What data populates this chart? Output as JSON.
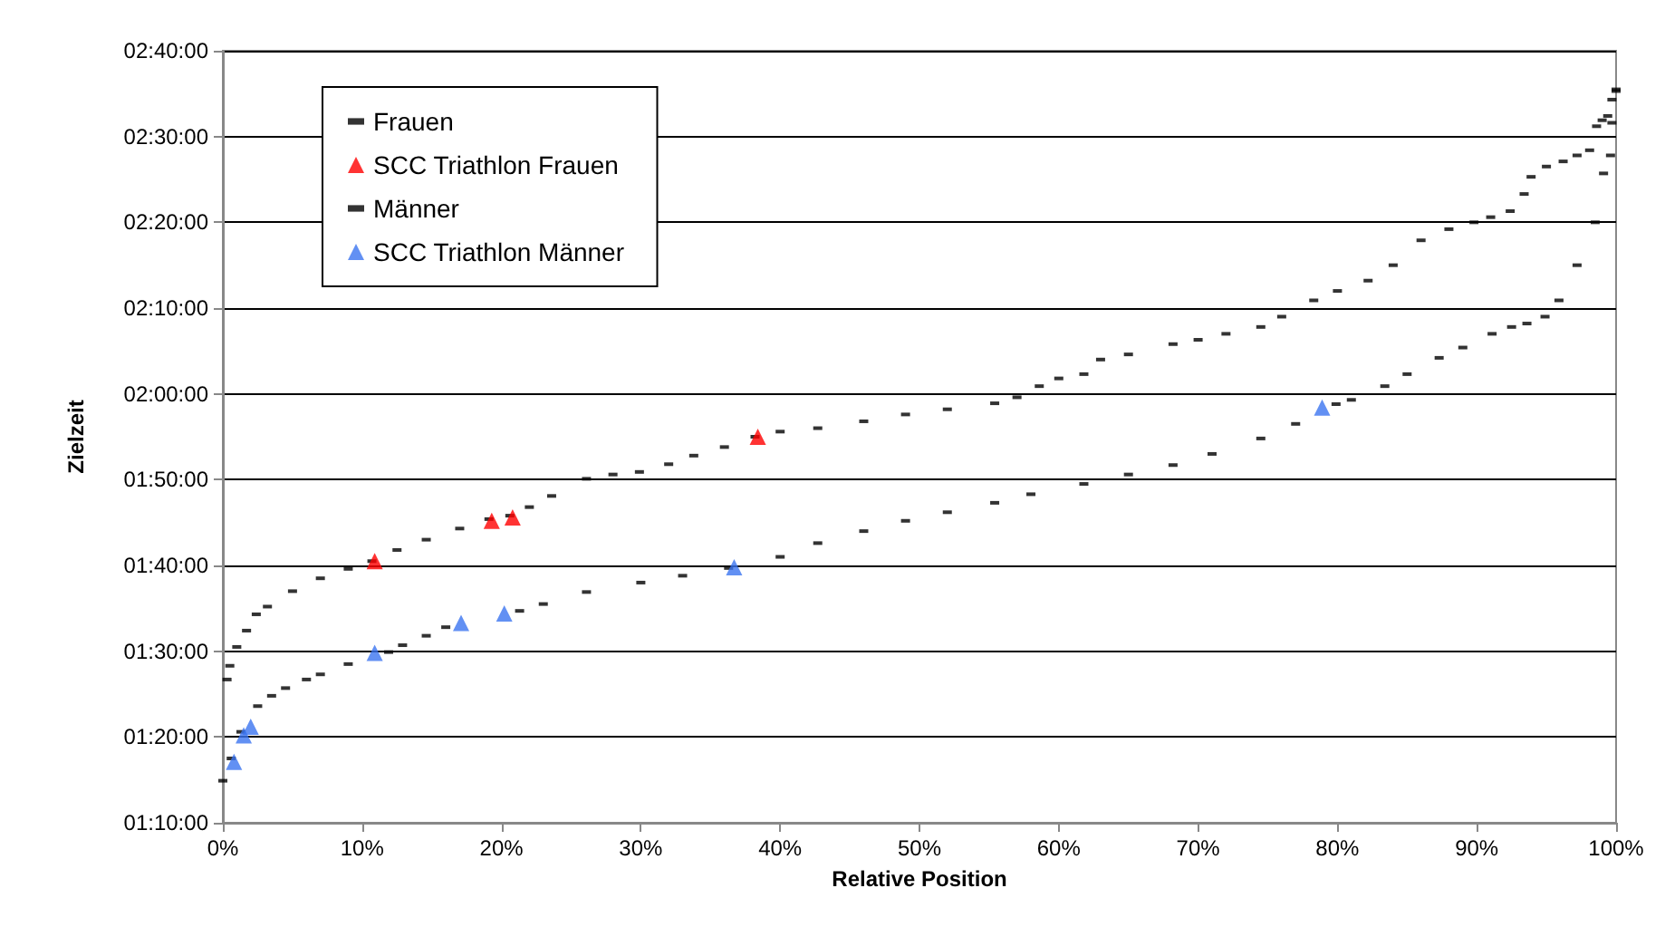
{
  "chart_data": {
    "type": "scatter",
    "xlabel": "Relative Position",
    "ylabel": "Zielzeit",
    "xlim": [
      0,
      100
    ],
    "xticks": [
      {
        "value": 0,
        "label": "0%"
      },
      {
        "value": 10,
        "label": "10%"
      },
      {
        "value": 20,
        "label": "20%"
      },
      {
        "value": 30,
        "label": "30%"
      },
      {
        "value": 40,
        "label": "40%"
      },
      {
        "value": 50,
        "label": "50%"
      },
      {
        "value": 60,
        "label": "60%"
      },
      {
        "value": 70,
        "label": "70%"
      },
      {
        "value": 80,
        "label": "80%"
      },
      {
        "value": 90,
        "label": "90%"
      },
      {
        "value": 100,
        "label": "100%"
      }
    ],
    "ylim": [
      70,
      160
    ],
    "yticks": [
      {
        "value": 70,
        "label": "01:10:00"
      },
      {
        "value": 80,
        "label": "01:20:00"
      },
      {
        "value": 90,
        "label": "01:30:00"
      },
      {
        "value": 100,
        "label": "01:40:00"
      },
      {
        "value": 110,
        "label": "01:50:00"
      },
      {
        "value": 120,
        "label": "02:00:00"
      },
      {
        "value": 130,
        "label": "02:10:00"
      },
      {
        "value": 140,
        "label": "02:20:00"
      },
      {
        "value": 150,
        "label": "02:30:00"
      },
      {
        "value": 160,
        "label": "02:40:00"
      }
    ],
    "grid": "y",
    "legend": "top left",
    "series": [
      {
        "name": "Frauen",
        "color": "#000000",
        "marker": "square",
        "x": [
          0.3,
          0.5,
          1.0,
          1.7,
          2.4,
          3.2,
          5,
          7,
          9,
          10.7,
          12.5,
          14.6,
          17,
          19.1,
          20.6,
          22,
          23.6,
          26.1,
          28,
          29.9,
          32,
          33.8,
          36,
          38.2,
          40,
          42.7,
          46,
          49,
          52,
          55.4,
          57,
          58.6,
          60,
          61.8,
          63,
          65,
          68.2,
          70,
          72,
          74.5,
          76,
          78.3,
          80,
          82.2,
          84,
          86,
          88,
          89.8,
          91,
          92.4,
          93.4,
          93.9,
          95,
          96.2,
          97.2,
          98.1,
          98.6,
          99,
          99.4,
          99.7,
          100
        ],
        "values": [
          86.7,
          88.3,
          90.5,
          92.4,
          94.3,
          95.2,
          97,
          98.5,
          99.6,
          100.5,
          101.8,
          103,
          104.3,
          105.4,
          105.8,
          106.8,
          108.1,
          110.1,
          110.6,
          110.9,
          111.8,
          112.8,
          113.8,
          115,
          115.6,
          116,
          116.8,
          117.6,
          118.2,
          118.9,
          119.6,
          120.9,
          121.8,
          122.3,
          124,
          124.6,
          125.8,
          126.3,
          127,
          127.8,
          129,
          130.9,
          132,
          133.2,
          135,
          137.9,
          139.2,
          140,
          140.6,
          141.3,
          143.3,
          145.3,
          146.5,
          147.1,
          147.8,
          148.4,
          151.2,
          151.9,
          152.4,
          154.3,
          155.3
        ]
      },
      {
        "name": "SCC Triathlon Frauen",
        "color": "#ff0000",
        "marker": "triangle",
        "x": [
          10.9,
          19.3,
          20.8,
          38.4
        ],
        "values": [
          100.5,
          105.2,
          105.6,
          115
        ]
      },
      {
        "name": "Männer",
        "color": "#000000",
        "marker": "square",
        "x": [
          0,
          0.6,
          1.3,
          2.5,
          3.5,
          4.5,
          6,
          7,
          9,
          11.9,
          12.9,
          14.6,
          16,
          21.3,
          23,
          26.1,
          30,
          33,
          36.3,
          40,
          42.7,
          46,
          49,
          52,
          55.4,
          58,
          61.8,
          65,
          68.2,
          71,
          74.5,
          77,
          79.9,
          81,
          83.4,
          85,
          87.3,
          89,
          91.1,
          92.5,
          93.6,
          94.9,
          95.9,
          97.2,
          98.5,
          99.1,
          99.6,
          99.7,
          100
        ],
        "values": [
          74.9,
          77.5,
          80.6,
          83.6,
          84.8,
          85.7,
          86.7,
          87.3,
          88.5,
          89.9,
          90.7,
          91.8,
          92.8,
          94.7,
          95.5,
          96.9,
          98,
          98.8,
          99.7,
          101,
          102.6,
          104,
          105.2,
          106.2,
          107.3,
          108.3,
          109.5,
          110.6,
          111.7,
          113,
          114.8,
          116.5,
          118.8,
          119.3,
          120.9,
          122.3,
          124.2,
          125.4,
          127,
          127.8,
          128.2,
          129,
          130.9,
          135,
          140,
          145.7,
          147.8,
          151.6,
          155.5
        ]
      },
      {
        "name": "SCC Triathlon Männer",
        "color": "#3b74f0",
        "marker": "triangle",
        "x": [
          0.8,
          1.5,
          2.0,
          10.9,
          17.1,
          20.2,
          36.7,
          78.9
        ],
        "values": [
          77.1,
          80.2,
          81.2,
          89.8,
          93.3,
          94.4,
          99.8,
          118.4
        ]
      }
    ]
  }
}
